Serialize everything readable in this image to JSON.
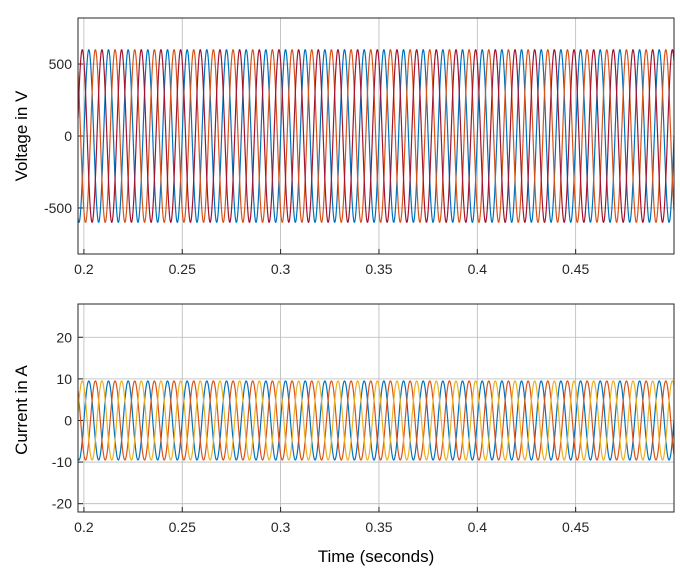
{
  "chart_data": [
    {
      "type": "line",
      "title": "",
      "xlabel": "",
      "ylabel": "Voltage in V",
      "xlim": [
        0.197,
        0.5
      ],
      "ylim": [
        -820,
        820
      ],
      "xticks": [
        0.2,
        0.25,
        0.3,
        0.35,
        0.4,
        0.45
      ],
      "xtick_labels": [
        "0.2",
        "0.25",
        "0.3",
        "0.35",
        "0.4",
        "0.45"
      ],
      "yticks": [
        -500,
        0,
        500
      ],
      "ytick_labels": [
        "-500",
        "0",
        "500"
      ],
      "grid": true,
      "legend": "none",
      "waveform": {
        "kind": "sine",
        "frequency_hz": 100,
        "amplitude": 600
      },
      "series": [
        {
          "phase_deg": 0,
          "color": "#0072BD",
          "amplitude": 600
        },
        {
          "phase_deg": -120,
          "color": "#D95319",
          "amplitude": 600
        },
        {
          "phase_deg": 120,
          "color": "#A2142F",
          "amplitude": 600
        }
      ]
    },
    {
      "type": "line",
      "title": "",
      "xlabel": "Time (seconds)",
      "ylabel": "Current in A",
      "xlim": [
        0.197,
        0.5
      ],
      "ylim": [
        -22,
        28
      ],
      "xticks": [
        0.2,
        0.25,
        0.3,
        0.35,
        0.4,
        0.45
      ],
      "xtick_labels": [
        "0.2",
        "0.25",
        "0.3",
        "0.35",
        "0.4",
        "0.45"
      ],
      "yticks": [
        -20,
        -10,
        0,
        10,
        20
      ],
      "ytick_labels": [
        "-20",
        "-10",
        "0",
        "10",
        "20"
      ],
      "grid": true,
      "legend": "none",
      "waveform": {
        "kind": "sine",
        "frequency_hz": 100,
        "amplitude": 9.5
      },
      "series": [
        {
          "phase_deg": 0,
          "color": "#0072BD",
          "amplitude": 9.5
        },
        {
          "phase_deg": -120,
          "color": "#D95319",
          "amplitude": 9.5
        },
        {
          "phase_deg": 120,
          "color": "#EDB120",
          "amplitude": 9.5
        }
      ]
    }
  ]
}
